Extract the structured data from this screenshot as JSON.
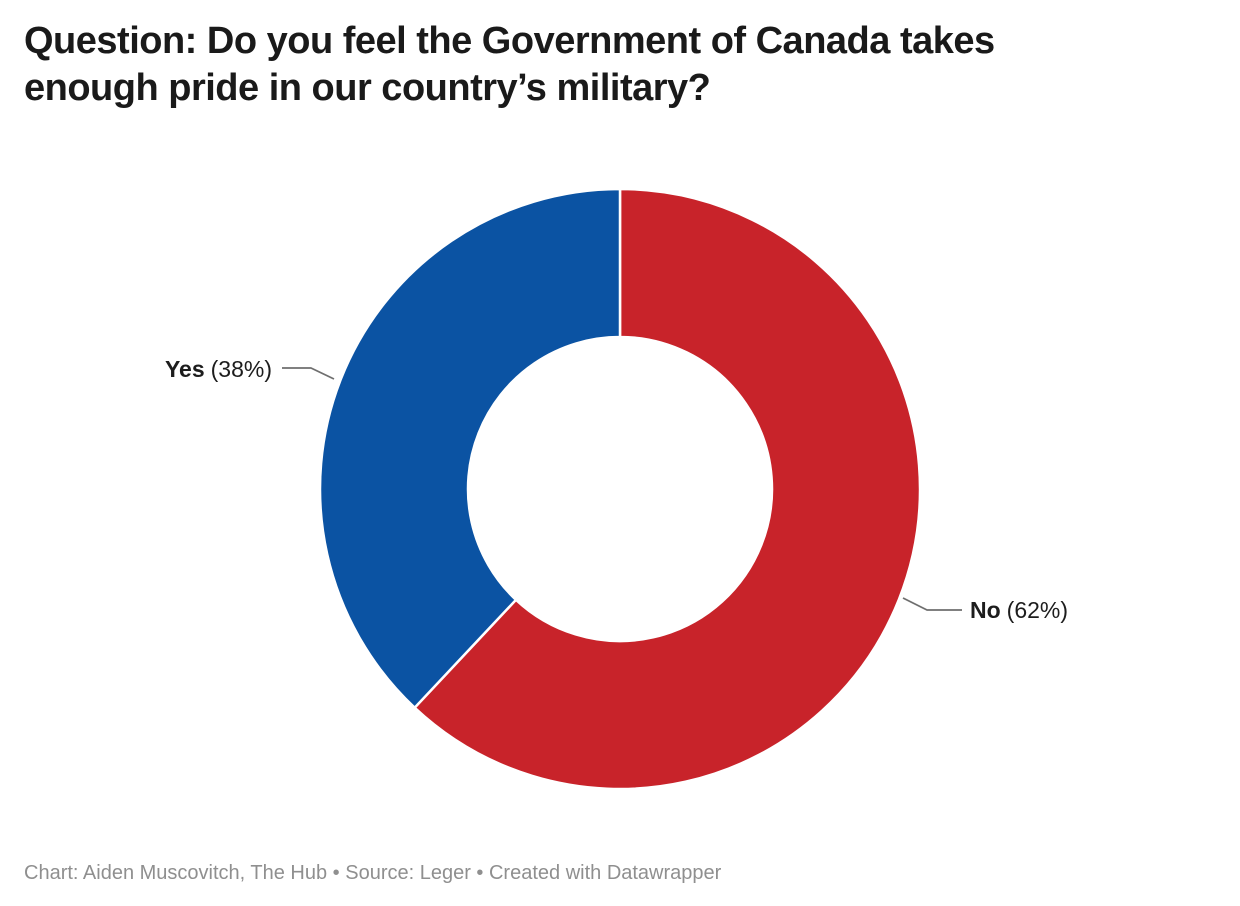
{
  "header": {
    "title": "Question: Do you feel the Government of Canada takes\nenough pride in our country’s military?"
  },
  "chart_data": {
    "type": "pie",
    "subtype": "donut",
    "title": "Question: Do you feel the Government of Canada takes enough pride in our country’s military?",
    "categories": [
      "No",
      "Yes"
    ],
    "values": [
      62,
      38
    ],
    "colors": [
      "#c8232a",
      "#0b53a3"
    ],
    "labels": [
      {
        "name": "No",
        "value_text": "(62%)"
      },
      {
        "name": "Yes",
        "value_text": "(38%)"
      }
    ],
    "start_angle_deg": 0,
    "direction": "clockwise",
    "inner_radius_ratio": 0.507,
    "legend_position": "none",
    "slice_gap_color": "#ffffff"
  },
  "footer": {
    "text": "Chart: Aiden Muscovitch, The Hub • Source: Leger • Created with Datawrapper"
  }
}
